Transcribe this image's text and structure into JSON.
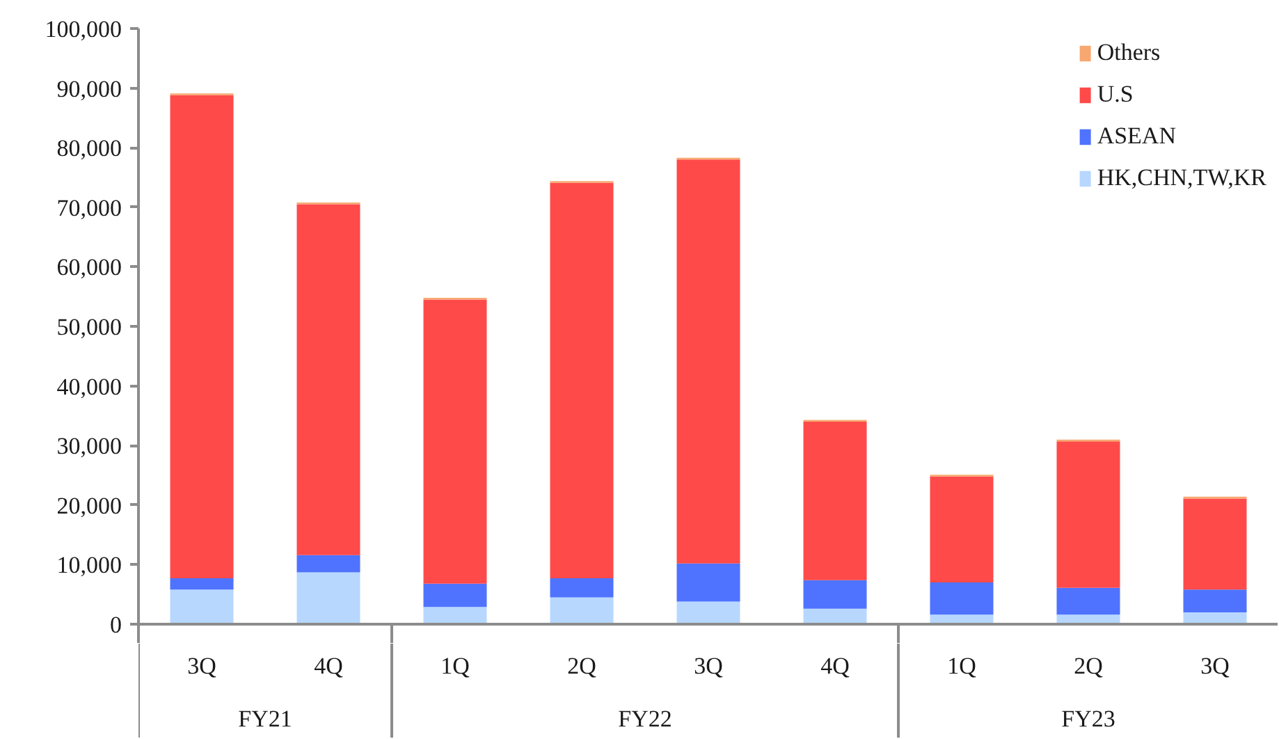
{
  "chart_data": {
    "type": "bar",
    "stacked": true,
    "categories": [
      "3Q",
      "4Q",
      "1Q",
      "2Q",
      "3Q",
      "4Q",
      "1Q",
      "2Q",
      "3Q"
    ],
    "annotations": [
      "FY21",
      "FY22",
      "FY23"
    ],
    "series": [
      {
        "name": "HK,CHN,TW,KR",
        "color": "#b7d7ff",
        "values": [
          5800,
          8700,
          2900,
          4500,
          3800,
          2600,
          1600,
          1600,
          2000
        ]
      },
      {
        "name": "ASEAN",
        "color": "#4f73ff",
        "values": [
          1900,
          2900,
          3900,
          3200,
          6400,
          4800,
          5400,
          4500,
          3800
        ]
      },
      {
        "name": "U.S",
        "color": "#ff4a4a",
        "values": [
          81100,
          58900,
          47700,
          66400,
          67800,
          26600,
          17800,
          24600,
          15300
        ]
      },
      {
        "name": "Others",
        "color": "#f7a870",
        "values": [
          300,
          300,
          300,
          300,
          300,
          300,
          300,
          300,
          300
        ]
      }
    ],
    "ylim": [
      0,
      100000
    ],
    "yticks": [
      0,
      {
        "value": 10000,
        "label": "10,000"
      },
      {
        "value": 20000,
        "label": "20,000"
      },
      {
        "value": 30000,
        "label": "30,000"
      },
      {
        "value": 40000,
        "label": "40,000"
      },
      {
        "value": 50000,
        "label": "50,000"
      },
      {
        "value": 60000,
        "label": "60,000"
      },
      {
        "value": 70000,
        "label": "70,000"
      },
      {
        "value": 80000,
        "label": "80,000"
      },
      {
        "value": 90000,
        "label": "90,000"
      },
      {
        "value": 100000,
        "label": "100,000"
      }
    ],
    "legend": "top right",
    "grid": false
  }
}
